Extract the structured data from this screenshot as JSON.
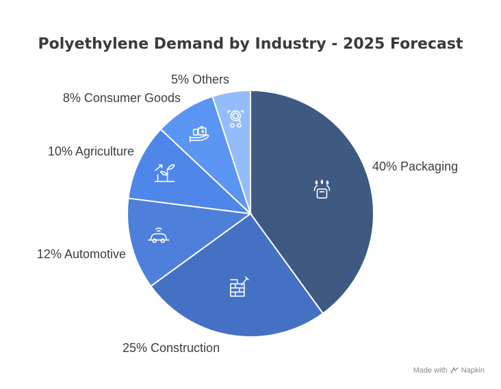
{
  "chart_data": {
    "type": "pie",
    "title": "Polyethylene Demand by Industry - 2025 Forecast",
    "slices": [
      {
        "label": "40% Packaging",
        "value": 40,
        "color": "#3e5a83",
        "icon": "package-icon"
      },
      {
        "label": "25% Construction",
        "value": 25,
        "color": "#4471c4",
        "icon": "brick-wall-icon"
      },
      {
        "label": "12% Automotive",
        "value": 12,
        "color": "#4d7fdb",
        "icon": "connected-car-icon"
      },
      {
        "label": "10% Agriculture",
        "value": 10,
        "color": "#4f86ea",
        "icon": "plant-growth-icon"
      },
      {
        "label": "8% Consumer Goods",
        "value": 8,
        "color": "#5b95f4",
        "icon": "shopping-bag-hand-icon"
      },
      {
        "label": "5% Others",
        "value": 5,
        "color": "#94bcfc",
        "icon": "search-icon"
      }
    ]
  },
  "watermark": {
    "made_with": "Made with",
    "brand": "Napkin"
  }
}
